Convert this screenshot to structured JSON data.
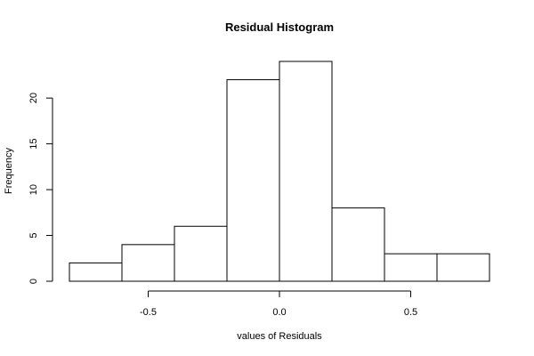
{
  "chart_data": {
    "type": "bar",
    "title": "Residual Histogram",
    "xlabel": "values of Residuals",
    "ylabel": "Frequency",
    "bins": [
      {
        "start": -0.8,
        "end": -0.6,
        "count": 2
      },
      {
        "start": -0.6,
        "end": -0.4,
        "count": 4
      },
      {
        "start": -0.4,
        "end": -0.2,
        "count": 6
      },
      {
        "start": -0.2,
        "end": 0.0,
        "count": 22
      },
      {
        "start": 0.0,
        "end": 0.2,
        "count": 24
      },
      {
        "start": 0.2,
        "end": 0.4,
        "count": 8
      },
      {
        "start": 0.4,
        "end": 0.6,
        "count": 3
      },
      {
        "start": 0.6,
        "end": 0.8,
        "count": 3
      }
    ],
    "xlim": [
      -0.8,
      0.8
    ],
    "ylim": [
      0,
      24
    ],
    "xticks": [
      -0.5,
      0.0,
      0.5
    ],
    "xtick_labels": [
      "-0.5",
      "0.0",
      "0.5"
    ],
    "yticks": [
      0,
      5,
      10,
      15,
      20
    ],
    "ytick_labels": [
      "0",
      "5",
      "10",
      "15",
      "20"
    ],
    "grid": false,
    "bar_fill": "#ffffff",
    "bar_stroke": "#000000"
  }
}
